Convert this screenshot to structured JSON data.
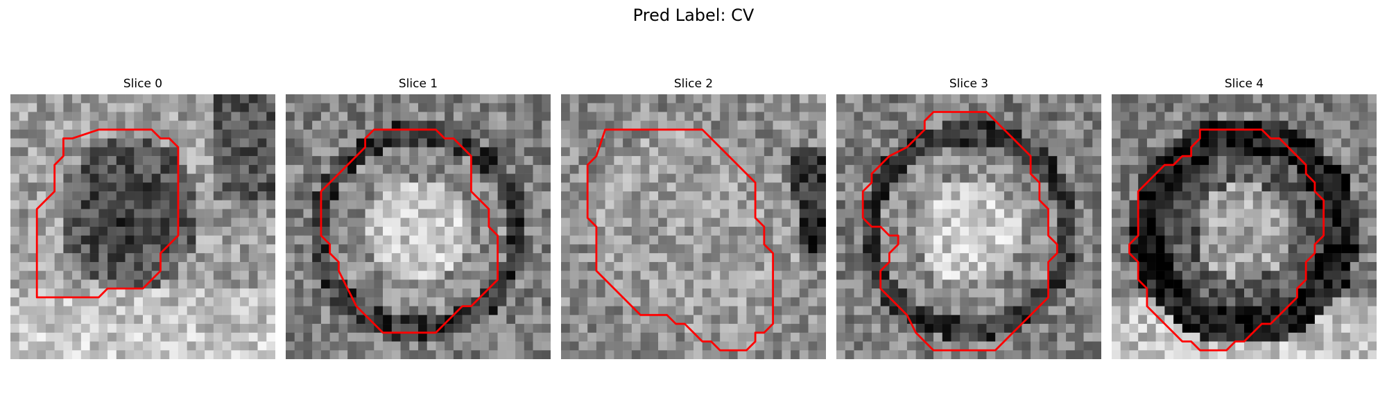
{
  "figure": {
    "title": "Pred Label: CV",
    "contour_color": "#ff0000",
    "colormap": "gray",
    "slices": [
      {
        "title": "Slice 0",
        "seed": 11,
        "style": "dark_blob"
      },
      {
        "title": "Slice 1",
        "seed": 23,
        "style": "bright_center"
      },
      {
        "title": "Slice 2",
        "seed": 37,
        "style": "uniform_gray"
      },
      {
        "title": "Slice 3",
        "seed": 41,
        "style": "bright_center"
      },
      {
        "title": "Slice 4",
        "seed": 53,
        "style": "dark_ring"
      }
    ]
  }
}
